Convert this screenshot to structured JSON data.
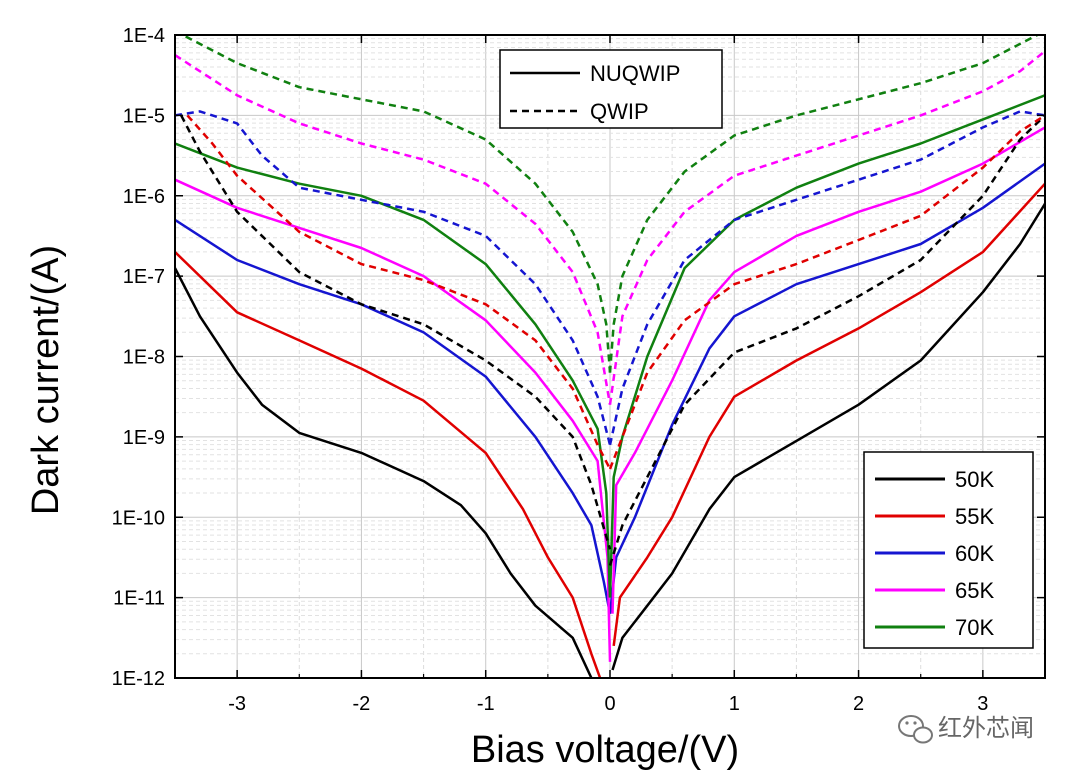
{
  "chart_data": {
    "type": "line",
    "title": "",
    "xlabel": "Bias voltage/(V)",
    "ylabel": "Dark current/(A)",
    "xlim": [
      -3.5,
      3.5
    ],
    "ylim_log10": [
      -12,
      -4
    ],
    "yscale": "log",
    "grid": true,
    "x_ticks": [
      -3,
      -2,
      -1,
      0,
      1,
      2,
      3
    ],
    "x_tick_labels": [
      "-3",
      "-2",
      "-1",
      "0",
      "1",
      "2",
      "3"
    ],
    "y_ticks_log10": [
      -12,
      -11,
      -10,
      -9,
      -8,
      -7,
      -6,
      -5,
      -4
    ],
    "y_tick_labels": [
      "1E-12",
      "1E-11",
      "1E-10",
      "1E-9",
      "1E-8",
      "1E-7",
      "1E-6",
      "1E-5",
      "1E-4"
    ],
    "legend_style": {
      "position": "top-center",
      "entries": [
        {
          "label": "NUQWIP",
          "dash": "solid"
        },
        {
          "label": "QWIP",
          "dash": "dashed"
        }
      ]
    },
    "legend_temp": {
      "position": "bottom-right",
      "entries": [
        {
          "label": "50K",
          "color": "#000000"
        },
        {
          "label": "55K",
          "color": "#e00000"
        },
        {
          "label": "60K",
          "color": "#1515d0"
        },
        {
          "label": "65K",
          "color": "#ff00ff"
        },
        {
          "label": "70K",
          "color": "#108010"
        }
      ]
    },
    "series": [
      {
        "name": "50K NUQWIP",
        "device": "NUQWIP",
        "temp": "50K",
        "color": "#000000",
        "dash": "solid",
        "points": [
          [
            -3.5,
            -6.9
          ],
          [
            -3.3,
            -7.5
          ],
          [
            -3.0,
            -8.2
          ],
          [
            -2.8,
            -8.6
          ],
          [
            -2.5,
            -8.95
          ],
          [
            -2.0,
            -9.2
          ],
          [
            -1.5,
            -9.55
          ],
          [
            -1.2,
            -9.85
          ],
          [
            -1.0,
            -10.2
          ],
          [
            -0.8,
            -10.7
          ],
          [
            -0.6,
            -11.1
          ],
          [
            -0.3,
            -11.5
          ],
          [
            -0.15,
            -12.0
          ]
        ]
      },
      {
        "name": "50K NUQWIP +",
        "device": "NUQWIP",
        "temp": "50K",
        "color": "#000000",
        "dash": "solid",
        "points": [
          [
            0.02,
            -11.9
          ],
          [
            0.1,
            -11.5
          ],
          [
            0.3,
            -11.1
          ],
          [
            0.5,
            -10.7
          ],
          [
            0.8,
            -9.9
          ],
          [
            1.0,
            -9.5
          ],
          [
            1.5,
            -9.05
          ],
          [
            2.0,
            -8.6
          ],
          [
            2.5,
            -8.05
          ],
          [
            3.0,
            -7.2
          ],
          [
            3.3,
            -6.6
          ],
          [
            3.5,
            -6.1
          ]
        ]
      },
      {
        "name": "55K NUQWIP",
        "device": "NUQWIP",
        "temp": "55K",
        "color": "#e00000",
        "dash": "solid",
        "points": [
          [
            -3.5,
            -6.7
          ],
          [
            -3.0,
            -7.45
          ],
          [
            -2.5,
            -7.8
          ],
          [
            -2.0,
            -8.15
          ],
          [
            -1.5,
            -8.55
          ],
          [
            -1.0,
            -9.2
          ],
          [
            -0.7,
            -9.9
          ],
          [
            -0.5,
            -10.5
          ],
          [
            -0.3,
            -11.0
          ],
          [
            -0.15,
            -11.7
          ],
          [
            -0.08,
            -12.0
          ]
        ]
      },
      {
        "name": "55K NUQWIP +",
        "device": "NUQWIP",
        "temp": "55K",
        "color": "#e00000",
        "dash": "solid",
        "points": [
          [
            0.03,
            -11.6
          ],
          [
            0.08,
            -11.0
          ],
          [
            0.3,
            -10.5
          ],
          [
            0.5,
            -10.0
          ],
          [
            0.8,
            -9.0
          ],
          [
            1.0,
            -8.5
          ],
          [
            1.5,
            -8.05
          ],
          [
            2.0,
            -7.65
          ],
          [
            2.5,
            -7.2
          ],
          [
            3.0,
            -6.7
          ],
          [
            3.5,
            -5.85
          ]
        ]
      },
      {
        "name": "60K NUQWIP",
        "device": "NUQWIP",
        "temp": "60K",
        "color": "#1515d0",
        "dash": "solid",
        "points": [
          [
            -3.5,
            -6.3
          ],
          [
            -3.0,
            -6.8
          ],
          [
            -2.5,
            -7.1
          ],
          [
            -2.0,
            -7.35
          ],
          [
            -1.5,
            -7.7
          ],
          [
            -1.0,
            -8.25
          ],
          [
            -0.6,
            -9.0
          ],
          [
            -0.3,
            -9.7
          ],
          [
            -0.15,
            -10.1
          ],
          [
            -0.05,
            -10.8
          ],
          [
            0.0,
            -11.2
          ]
        ]
      },
      {
        "name": "60K NUQWIP +",
        "device": "NUQWIP",
        "temp": "60K",
        "color": "#1515d0",
        "dash": "solid",
        "points": [
          [
            0.0,
            -11.2
          ],
          [
            0.05,
            -10.5
          ],
          [
            0.2,
            -10.0
          ],
          [
            0.5,
            -8.85
          ],
          [
            0.8,
            -7.9
          ],
          [
            1.0,
            -7.5
          ],
          [
            1.5,
            -7.1
          ],
          [
            2.0,
            -6.85
          ],
          [
            2.5,
            -6.6
          ],
          [
            3.0,
            -6.15
          ],
          [
            3.5,
            -5.6
          ]
        ]
      },
      {
        "name": "65K NUQWIP",
        "device": "NUQWIP",
        "temp": "65K",
        "color": "#ff00ff",
        "dash": "solid",
        "points": [
          [
            -3.5,
            -5.8
          ],
          [
            -3.0,
            -6.15
          ],
          [
            -2.5,
            -6.4
          ],
          [
            -2.0,
            -6.65
          ],
          [
            -1.5,
            -7.0
          ],
          [
            -1.0,
            -7.55
          ],
          [
            -0.6,
            -8.2
          ],
          [
            -0.3,
            -8.8
          ],
          [
            -0.1,
            -9.3
          ],
          [
            -0.02,
            -10.5
          ],
          [
            0.0,
            -11.8
          ]
        ]
      },
      {
        "name": "65K NUQWIP +",
        "device": "NUQWIP",
        "temp": "65K",
        "color": "#ff00ff",
        "dash": "solid",
        "points": [
          [
            0.02,
            -11.2
          ],
          [
            0.05,
            -9.6
          ],
          [
            0.2,
            -9.2
          ],
          [
            0.5,
            -8.3
          ],
          [
            0.8,
            -7.3
          ],
          [
            1.0,
            -6.95
          ],
          [
            1.5,
            -6.5
          ],
          [
            2.0,
            -6.2
          ],
          [
            2.5,
            -5.95
          ],
          [
            3.0,
            -5.6
          ],
          [
            3.5,
            -5.15
          ]
        ]
      },
      {
        "name": "70K NUQWIP",
        "device": "NUQWIP",
        "temp": "70K",
        "color": "#108010",
        "dash": "solid",
        "points": [
          [
            -3.5,
            -5.35
          ],
          [
            -3.0,
            -5.65
          ],
          [
            -2.5,
            -5.85
          ],
          [
            -2.0,
            -6.0
          ],
          [
            -1.5,
            -6.3
          ],
          [
            -1.0,
            -6.85
          ],
          [
            -0.6,
            -7.6
          ],
          [
            -0.3,
            -8.3
          ],
          [
            -0.1,
            -8.9
          ],
          [
            -0.03,
            -9.7
          ],
          [
            0.0,
            -11.0
          ]
        ]
      },
      {
        "name": "70K NUQWIP +",
        "device": "NUQWIP",
        "temp": "70K",
        "color": "#108010",
        "dash": "solid",
        "points": [
          [
            0.0,
            -11.0
          ],
          [
            0.03,
            -9.5
          ],
          [
            0.1,
            -9.0
          ],
          [
            0.3,
            -8.0
          ],
          [
            0.6,
            -6.9
          ],
          [
            1.0,
            -6.3
          ],
          [
            1.5,
            -5.9
          ],
          [
            2.0,
            -5.6
          ],
          [
            2.5,
            -5.35
          ],
          [
            3.0,
            -5.05
          ],
          [
            3.5,
            -4.75
          ]
        ]
      },
      {
        "name": "50K QWIP",
        "device": "QWIP",
        "temp": "50K",
        "color": "#000000",
        "dash": "dashed",
        "points": [
          [
            -3.45,
            -5.0
          ],
          [
            -3.3,
            -5.45
          ],
          [
            -3.0,
            -6.2
          ],
          [
            -2.5,
            -6.95
          ],
          [
            -2.0,
            -7.35
          ],
          [
            -1.5,
            -7.6
          ],
          [
            -1.0,
            -8.05
          ],
          [
            -0.6,
            -8.5
          ],
          [
            -0.3,
            -9.0
          ],
          [
            -0.15,
            -9.6
          ],
          [
            0.0,
            -10.4
          ]
        ]
      },
      {
        "name": "50K QWIP +",
        "device": "QWIP",
        "temp": "50K",
        "color": "#000000",
        "dash": "dashed",
        "points": [
          [
            0.0,
            -10.6
          ],
          [
            0.1,
            -10.1
          ],
          [
            0.3,
            -9.5
          ],
          [
            0.6,
            -8.6
          ],
          [
            1.0,
            -7.95
          ],
          [
            1.5,
            -7.65
          ],
          [
            2.0,
            -7.25
          ],
          [
            2.5,
            -6.8
          ],
          [
            3.0,
            -6.0
          ],
          [
            3.3,
            -5.3
          ],
          [
            3.5,
            -5.0
          ]
        ]
      },
      {
        "name": "55K QWIP",
        "device": "QWIP",
        "temp": "55K",
        "color": "#e00000",
        "dash": "dashed",
        "points": [
          [
            -3.4,
            -5.0
          ],
          [
            -3.2,
            -5.35
          ],
          [
            -3.0,
            -5.75
          ],
          [
            -2.5,
            -6.45
          ],
          [
            -2.0,
            -6.85
          ],
          [
            -1.5,
            -7.05
          ],
          [
            -1.0,
            -7.35
          ],
          [
            -0.6,
            -7.8
          ],
          [
            -0.3,
            -8.4
          ],
          [
            -0.1,
            -9.1
          ],
          [
            0.0,
            -9.4
          ]
        ]
      },
      {
        "name": "55K QWIP +",
        "device": "QWIP",
        "temp": "55K",
        "color": "#e00000",
        "dash": "dashed",
        "points": [
          [
            0.0,
            -9.4
          ],
          [
            0.1,
            -9.0
          ],
          [
            0.3,
            -8.2
          ],
          [
            0.6,
            -7.55
          ],
          [
            1.0,
            -7.1
          ],
          [
            1.5,
            -6.85
          ],
          [
            2.0,
            -6.55
          ],
          [
            2.5,
            -6.25
          ],
          [
            3.0,
            -5.65
          ],
          [
            3.3,
            -5.2
          ],
          [
            3.5,
            -5.0
          ]
        ]
      },
      {
        "name": "60K QWIP",
        "device": "QWIP",
        "temp": "60K",
        "color": "#1515d0",
        "dash": "dashed",
        "points": [
          [
            -3.5,
            -5.0
          ],
          [
            -3.3,
            -4.95
          ],
          [
            -3.0,
            -5.1
          ],
          [
            -2.8,
            -5.5
          ],
          [
            -2.5,
            -5.9
          ],
          [
            -2.0,
            -6.05
          ],
          [
            -1.5,
            -6.2
          ],
          [
            -1.0,
            -6.5
          ],
          [
            -0.6,
            -7.1
          ],
          [
            -0.3,
            -7.8
          ],
          [
            -0.1,
            -8.5
          ],
          [
            0.0,
            -9.1
          ]
        ]
      },
      {
        "name": "60K QWIP +",
        "device": "QWIP",
        "temp": "60K",
        "color": "#1515d0",
        "dash": "dashed",
        "points": [
          [
            0.0,
            -9.1
          ],
          [
            0.1,
            -8.4
          ],
          [
            0.3,
            -7.6
          ],
          [
            0.6,
            -6.8
          ],
          [
            1.0,
            -6.3
          ],
          [
            1.5,
            -6.05
          ],
          [
            2.0,
            -5.8
          ],
          [
            2.5,
            -5.55
          ],
          [
            3.0,
            -5.15
          ],
          [
            3.3,
            -4.95
          ],
          [
            3.5,
            -5.0
          ]
        ]
      },
      {
        "name": "65K QWIP",
        "device": "QWIP",
        "temp": "65K",
        "color": "#ff00ff",
        "dash": "dashed",
        "points": [
          [
            -3.5,
            -4.25
          ],
          [
            -3.0,
            -4.75
          ],
          [
            -2.5,
            -5.1
          ],
          [
            -2.0,
            -5.35
          ],
          [
            -1.5,
            -5.55
          ],
          [
            -1.0,
            -5.85
          ],
          [
            -0.6,
            -6.35
          ],
          [
            -0.3,
            -6.95
          ],
          [
            -0.1,
            -7.7
          ],
          [
            0.0,
            -8.6
          ]
        ]
      },
      {
        "name": "65K QWIP +",
        "device": "QWIP",
        "temp": "65K",
        "color": "#ff00ff",
        "dash": "dashed",
        "points": [
          [
            0.0,
            -8.6
          ],
          [
            0.1,
            -7.5
          ],
          [
            0.3,
            -6.8
          ],
          [
            0.6,
            -6.2
          ],
          [
            1.0,
            -5.75
          ],
          [
            1.5,
            -5.5
          ],
          [
            2.0,
            -5.25
          ],
          [
            2.5,
            -5.0
          ],
          [
            3.0,
            -4.7
          ],
          [
            3.3,
            -4.45
          ],
          [
            3.5,
            -4.2
          ]
        ]
      },
      {
        "name": "70K QWIP",
        "device": "QWIP",
        "temp": "70K",
        "color": "#108010",
        "dash": "dashed",
        "points": [
          [
            -3.5,
            -3.95
          ],
          [
            -3.0,
            -4.35
          ],
          [
            -2.5,
            -4.65
          ],
          [
            -2.0,
            -4.8
          ],
          [
            -1.5,
            -4.95
          ],
          [
            -1.0,
            -5.3
          ],
          [
            -0.6,
            -5.85
          ],
          [
            -0.3,
            -6.45
          ],
          [
            -0.1,
            -7.1
          ],
          [
            -0.03,
            -7.6
          ],
          [
            0.0,
            -8.2
          ]
        ]
      },
      {
        "name": "70K QWIP +",
        "device": "QWIP",
        "temp": "70K",
        "color": "#108010",
        "dash": "dashed",
        "points": [
          [
            0.0,
            -8.2
          ],
          [
            0.03,
            -7.6
          ],
          [
            0.1,
            -7.0
          ],
          [
            0.3,
            -6.3
          ],
          [
            0.6,
            -5.7
          ],
          [
            1.0,
            -5.25
          ],
          [
            1.5,
            -5.0
          ],
          [
            2.0,
            -4.8
          ],
          [
            2.5,
            -4.6
          ],
          [
            3.0,
            -4.35
          ],
          [
            3.5,
            -3.95
          ]
        ]
      }
    ]
  },
  "watermark": {
    "text": "红外芯闻",
    "icon": "wechat-icon"
  }
}
